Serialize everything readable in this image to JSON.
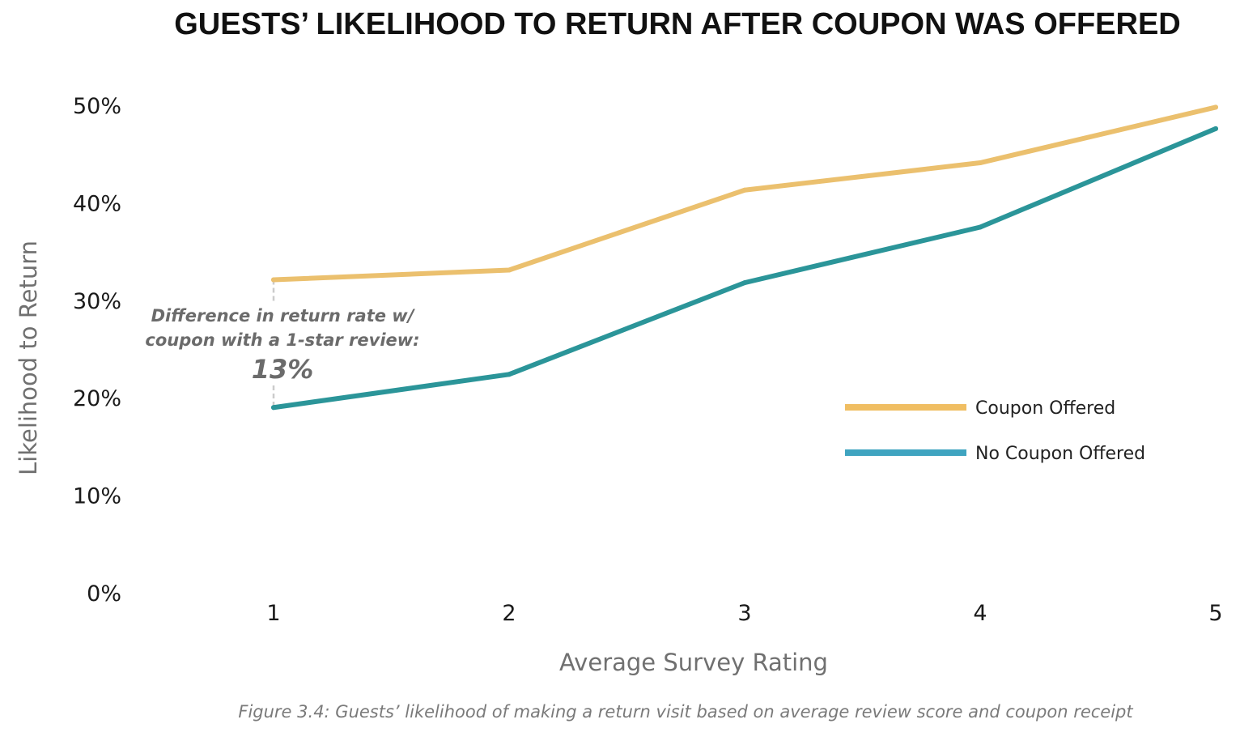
{
  "chart_data": {
    "type": "line",
    "title": "GUESTS’ LIKELIHOOD TO RETURN AFTER COUPON WAS OFFERED",
    "xlabel": "Average Survey Rating",
    "ylabel": "Likelihood to Return",
    "x": [
      1,
      2,
      3,
      4,
      5
    ],
    "x_tick_labels": [
      "1",
      "2",
      "3",
      "4",
      "5"
    ],
    "ylim": [
      0,
      50
    ],
    "y_ticks": [
      0,
      10,
      20,
      30,
      40,
      50
    ],
    "y_tick_labels": [
      "0%",
      "10%",
      "20%",
      "30%",
      "40%",
      "50%"
    ],
    "grid": false,
    "legend_position": "right",
    "series": [
      {
        "name": "Coupon Offered",
        "color": "#EBC06E",
        "legend_color": "#F0BE62",
        "values": [
          32.1,
          33.1,
          41.3,
          44.1,
          49.8
        ]
      },
      {
        "name": "No Coupon Offered",
        "color": "#2B9599",
        "legend_color": "#3FA4C0",
        "values": [
          19.0,
          22.4,
          31.8,
          37.5,
          47.6
        ]
      }
    ],
    "annotation": {
      "lines": [
        "Difference in return rate w/",
        "coupon with a 1-star review:"
      ],
      "value": "13%",
      "at_x": 1,
      "connector_color": "#cccccc"
    },
    "caption": "Figure 3.4: Guests’ likelihood of making a return visit based on average review score and coupon receipt"
  }
}
